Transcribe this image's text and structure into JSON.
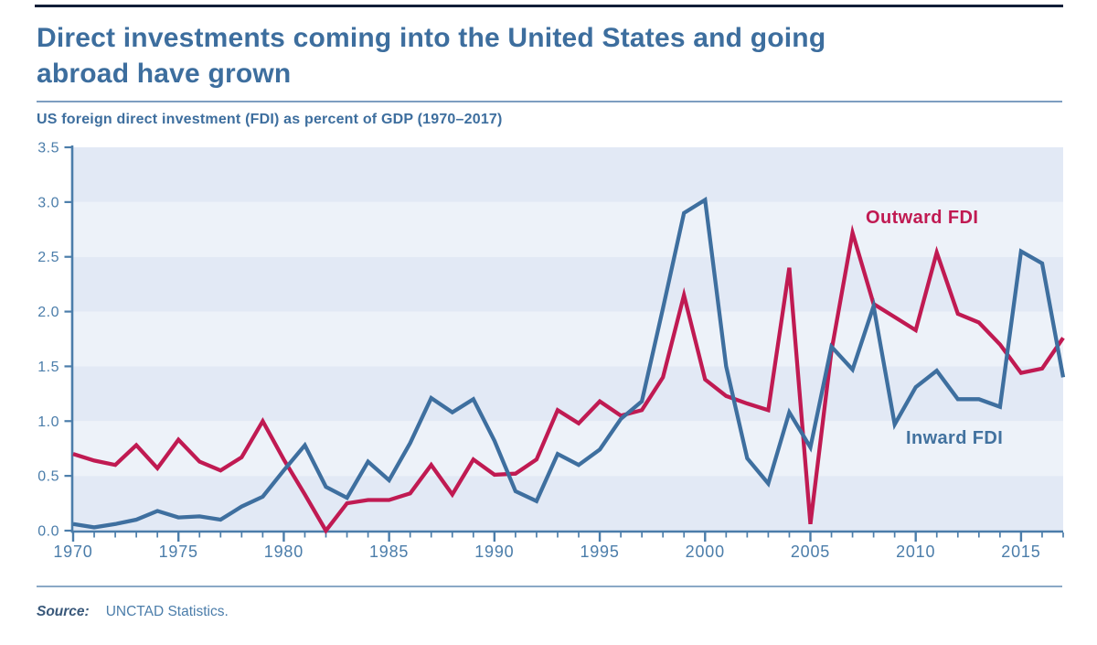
{
  "page": {
    "title_line1": "Direct investments coming into the United States and going",
    "title_line2": "abroad have grown",
    "subtitle": "US foreign direct investment (FDI) as percent of GDP (1970–2017)",
    "source_label": "Source:",
    "source_text": "UNCTAD Statistics."
  },
  "colors": {
    "title_blue": "#3d6e9e",
    "axis_blue": "#4b7daa",
    "inward_blue": "#3e6f9f",
    "outward_crimson": "#c01a52",
    "band_dark": "#e2e9f5",
    "band_light": "#edf2f9",
    "rule_blue": "#7d9ec0",
    "top_rule_navy": "#121f38"
  },
  "chart_data": {
    "type": "line",
    "title": "US foreign direct investment (FDI) as percent of GDP (1970–2017)",
    "xlabel": "",
    "ylabel": "",
    "x_range": [
      1970,
      2017
    ],
    "ylim": [
      0,
      3.5
    ],
    "y_tick_step": 0.5,
    "y_ticks": [
      "0.0",
      "0.5",
      "1.0",
      "1.5",
      "2.0",
      "2.5",
      "3.0",
      "3.5"
    ],
    "x_ticks": [
      1970,
      1975,
      1980,
      1985,
      1990,
      1995,
      2000,
      2005,
      2010,
      2015
    ],
    "grid": "alternating horizontal bands every 0.5, dark band at 0-0.5",
    "legend_position": "inline labels on plot",
    "x": [
      1970,
      1971,
      1972,
      1973,
      1974,
      1975,
      1976,
      1977,
      1978,
      1979,
      1980,
      1981,
      1982,
      1983,
      1984,
      1985,
      1986,
      1987,
      1988,
      1989,
      1990,
      1991,
      1992,
      1993,
      1994,
      1995,
      1996,
      1997,
      1998,
      1999,
      2000,
      2001,
      2002,
      2003,
      2004,
      2005,
      2006,
      2007,
      2008,
      2009,
      2010,
      2011,
      2012,
      2013,
      2014,
      2015,
      2016,
      2017
    ],
    "series": [
      {
        "name": "Outward FDI",
        "color": "#c01a52",
        "values": [
          0.7,
          0.64,
          0.6,
          0.78,
          0.57,
          0.83,
          0.63,
          0.55,
          0.67,
          1.0,
          0.65,
          0.33,
          0.0,
          0.25,
          0.28,
          0.28,
          0.34,
          0.6,
          0.33,
          0.65,
          0.51,
          0.52,
          0.65,
          1.1,
          0.98,
          1.18,
          1.05,
          1.1,
          1.4,
          2.15,
          1.38,
          1.23,
          1.16,
          1.1,
          2.4,
          0.06,
          1.64,
          2.72,
          2.07,
          1.95,
          1.83,
          2.54,
          1.98,
          1.9,
          1.7,
          1.44,
          1.48,
          1.76
        ]
      },
      {
        "name": "Inward FDI",
        "color": "#3e6f9f",
        "values": [
          0.06,
          0.03,
          0.06,
          0.1,
          0.18,
          0.12,
          0.13,
          0.1,
          0.22,
          0.31,
          0.55,
          0.78,
          0.4,
          0.3,
          0.63,
          0.46,
          0.8,
          1.21,
          1.08,
          1.2,
          0.82,
          0.36,
          0.27,
          0.7,
          0.6,
          0.74,
          1.02,
          1.18,
          2.03,
          2.9,
          3.02,
          1.5,
          0.66,
          0.43,
          1.08,
          0.76,
          1.68,
          1.47,
          2.05,
          0.97,
          1.31,
          1.46,
          1.2,
          1.2,
          1.13,
          2.55,
          2.44,
          1.4
        ]
      }
    ]
  }
}
